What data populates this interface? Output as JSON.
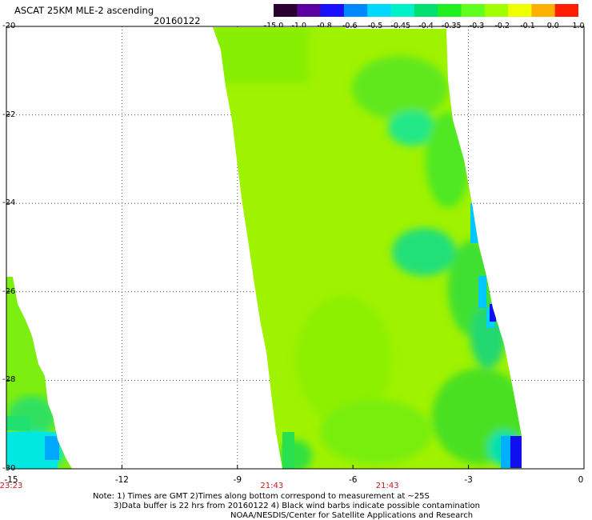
{
  "header": {
    "title": "ASCAT 25KM MLE-2 ascending",
    "date": "20160122"
  },
  "colorbar": {
    "labels": [
      "-15.0",
      "-1.0",
      "-0.8",
      "-0.6",
      "-0.5",
      "-0.45",
      "-0.4",
      "-0.35",
      "-0.3",
      "-0.2",
      "-0.1",
      "0.0",
      "1.0"
    ],
    "colors": [
      "#2a0030",
      "#5a00a0",
      "#1a10ff",
      "#0088ff",
      "#00d8ff",
      "#00f0c8",
      "#00e070",
      "#20f020",
      "#60ff20",
      "#a0ff00",
      "#f0ff00",
      "#ffb000",
      "#ff1e00"
    ]
  },
  "map_data": {
    "lat_range": [
      -30,
      -20
    ],
    "lon_range": [
      -15,
      0
    ],
    "lat_ticks": [
      "-20",
      "-22",
      "-24",
      "-26",
      "-28",
      "-30"
    ],
    "lon_ticks": [
      "-15",
      "-12",
      "-9",
      "-6",
      "-3",
      "0"
    ],
    "pass_times": [
      {
        "label": "23:23",
        "lon": -15
      },
      {
        "label": "21:43",
        "lon": -9
      },
      {
        "label": "21:43",
        "lon": -6
      }
    ],
    "grid": "dotted"
  },
  "notes": {
    "line1": "Note: 1) Times are GMT 2)Times along bottom correspond to measurement at ~25S",
    "line2": "3)Data buffer is 22 hrs from 20160122 4) Black wind barbs indicate possible contamination",
    "line3": "NOAA/NESDIS/Center for Satellite Applications and Research"
  }
}
